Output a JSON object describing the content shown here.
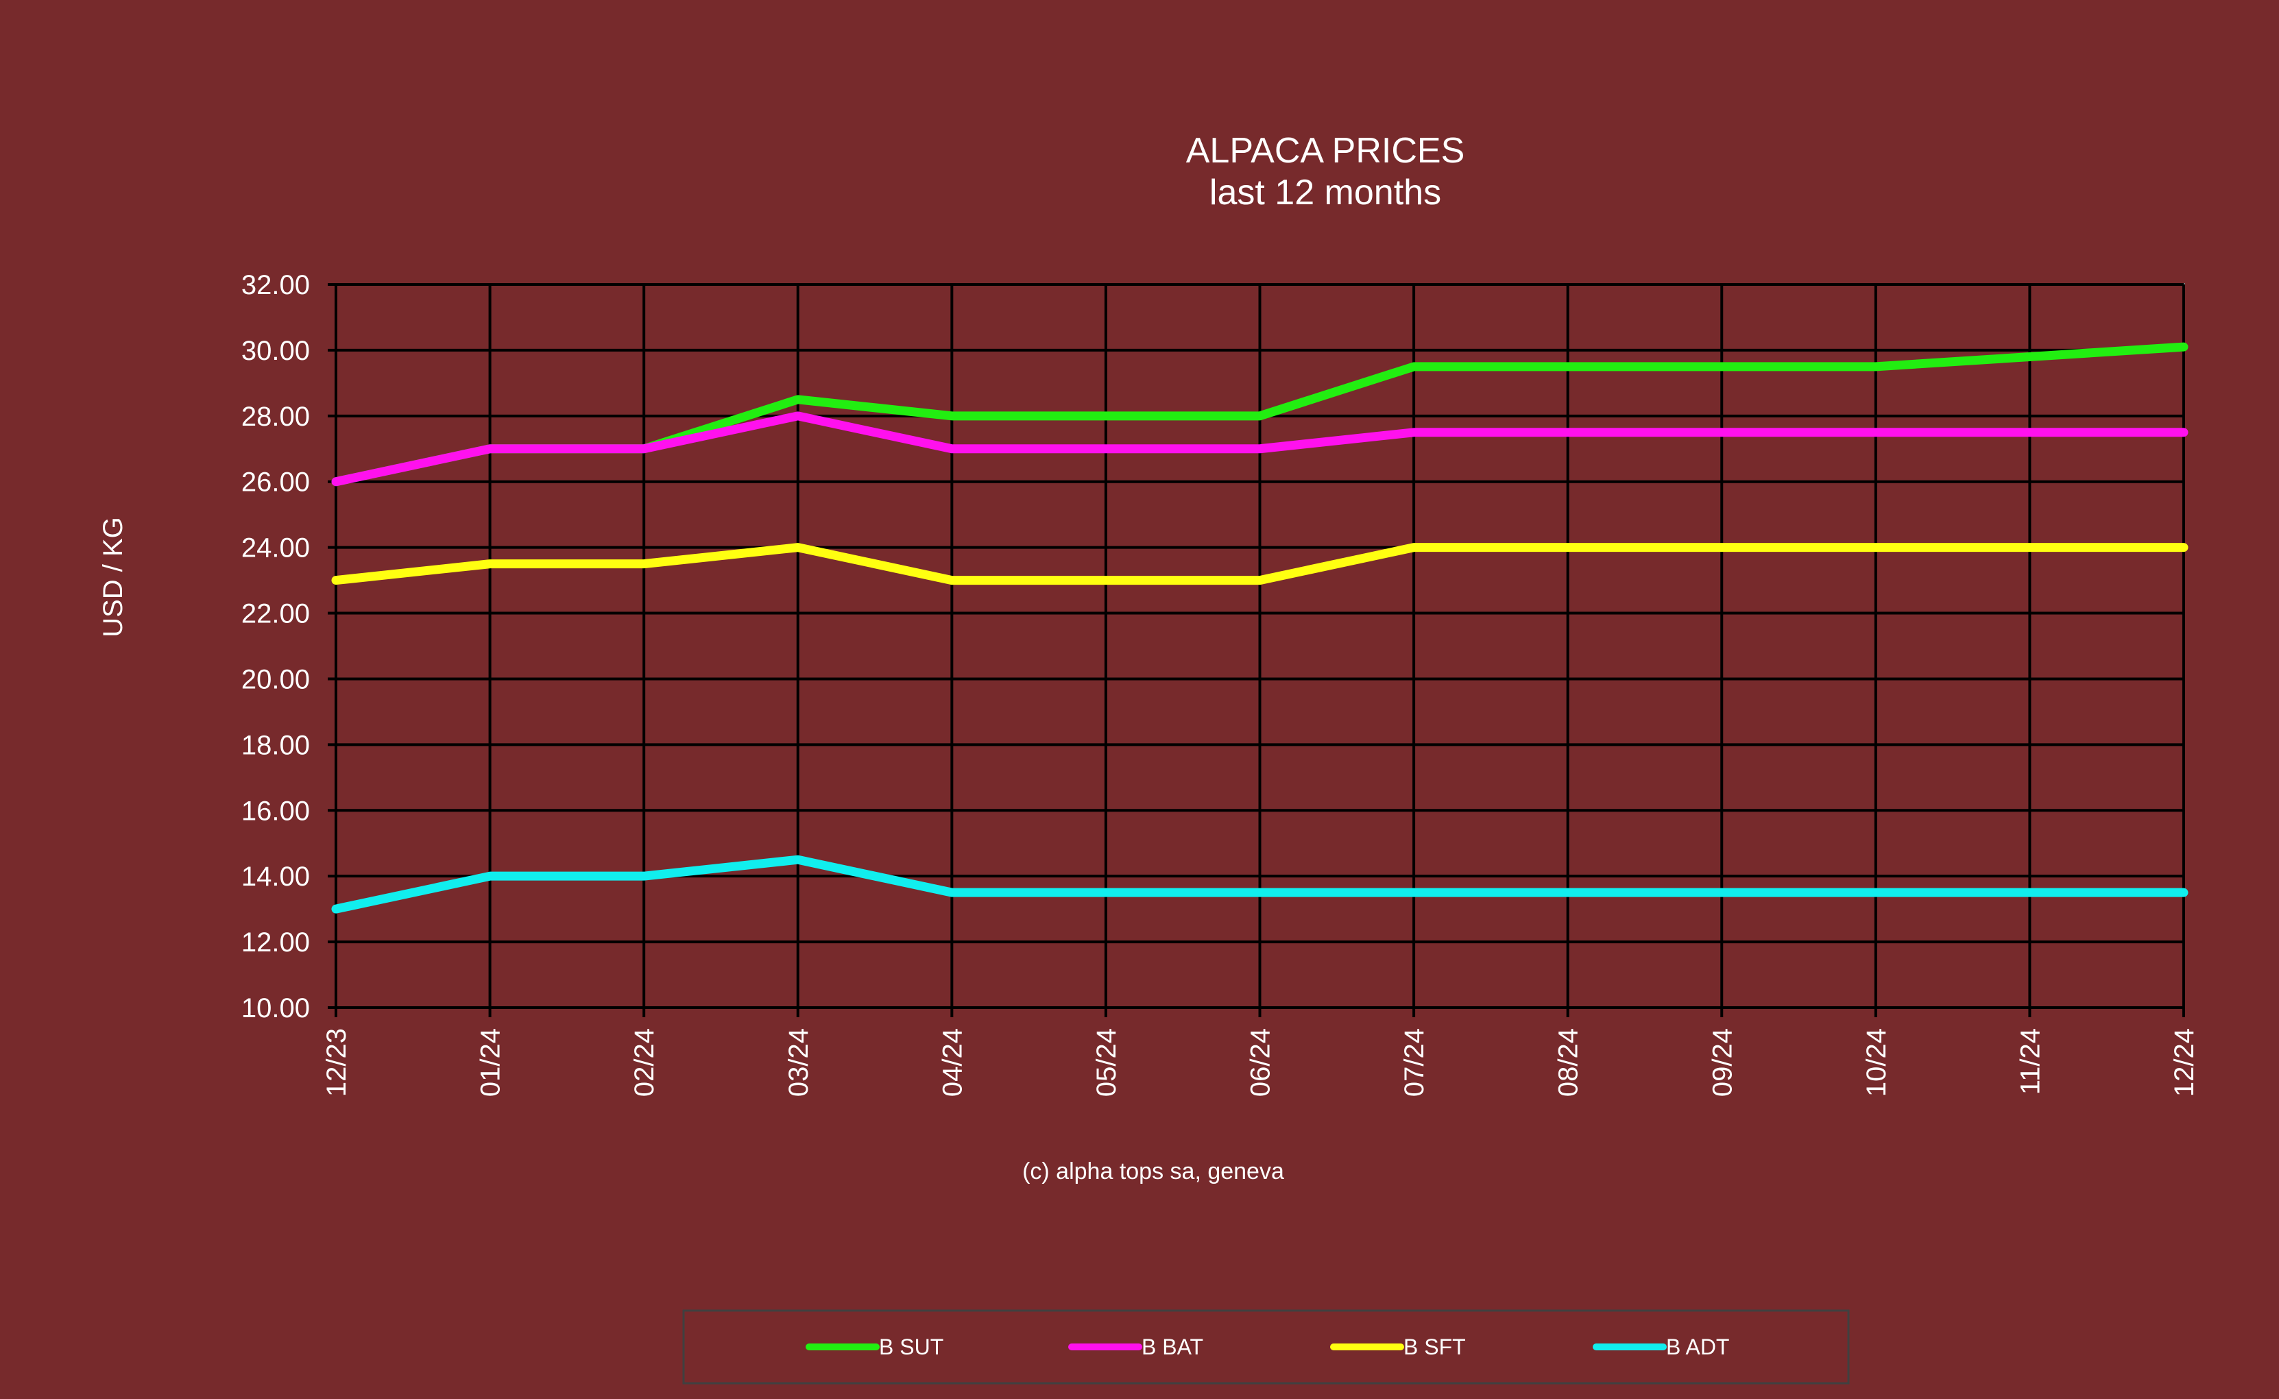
{
  "chart_data": {
    "type": "line",
    "title": "ALPACA PRICES",
    "subtitle": "last 12 months",
    "xlabel": "",
    "ylabel": "USD / KG",
    "categories": [
      "12/23",
      "01/24",
      "02/24",
      "03/24",
      "04/24",
      "05/24",
      "06/24",
      "07/24",
      "08/24",
      "09/24",
      "10/24",
      "11/24",
      "12/24"
    ],
    "ylim": [
      10,
      32
    ],
    "yticks": [
      "10.00",
      "12.00",
      "14.00",
      "16.00",
      "18.00",
      "20.00",
      "22.00",
      "24.00",
      "26.00",
      "28.00",
      "30.00",
      "32.00"
    ],
    "grid": true,
    "legend_position": "bottom",
    "series": [
      {
        "name": "B SUT",
        "color": "#22EE11",
        "values": [
          26.0,
          27.0,
          27.0,
          28.5,
          28.0,
          28.0,
          28.0,
          29.5,
          29.5,
          29.5,
          29.5,
          29.8,
          30.1
        ]
      },
      {
        "name": "B BAT",
        "color": "#FF11EE",
        "values": [
          26.0,
          27.0,
          27.0,
          28.0,
          27.0,
          27.0,
          27.0,
          27.5,
          27.5,
          27.5,
          27.5,
          27.5,
          27.5
        ]
      },
      {
        "name": "B SFT",
        "color": "#FFFF11",
        "values": [
          23.0,
          23.5,
          23.5,
          24.0,
          23.0,
          23.0,
          23.0,
          24.0,
          24.0,
          24.0,
          24.0,
          24.0,
          24.0
        ]
      },
      {
        "name": "B ADT",
        "color": "#11EEEE",
        "values": [
          13.0,
          14.0,
          14.0,
          14.5,
          13.5,
          13.5,
          13.5,
          13.5,
          13.5,
          13.5,
          13.5,
          13.5,
          13.5
        ]
      }
    ]
  },
  "footer": {
    "copyright": "(c) alpha tops sa, geneva"
  }
}
